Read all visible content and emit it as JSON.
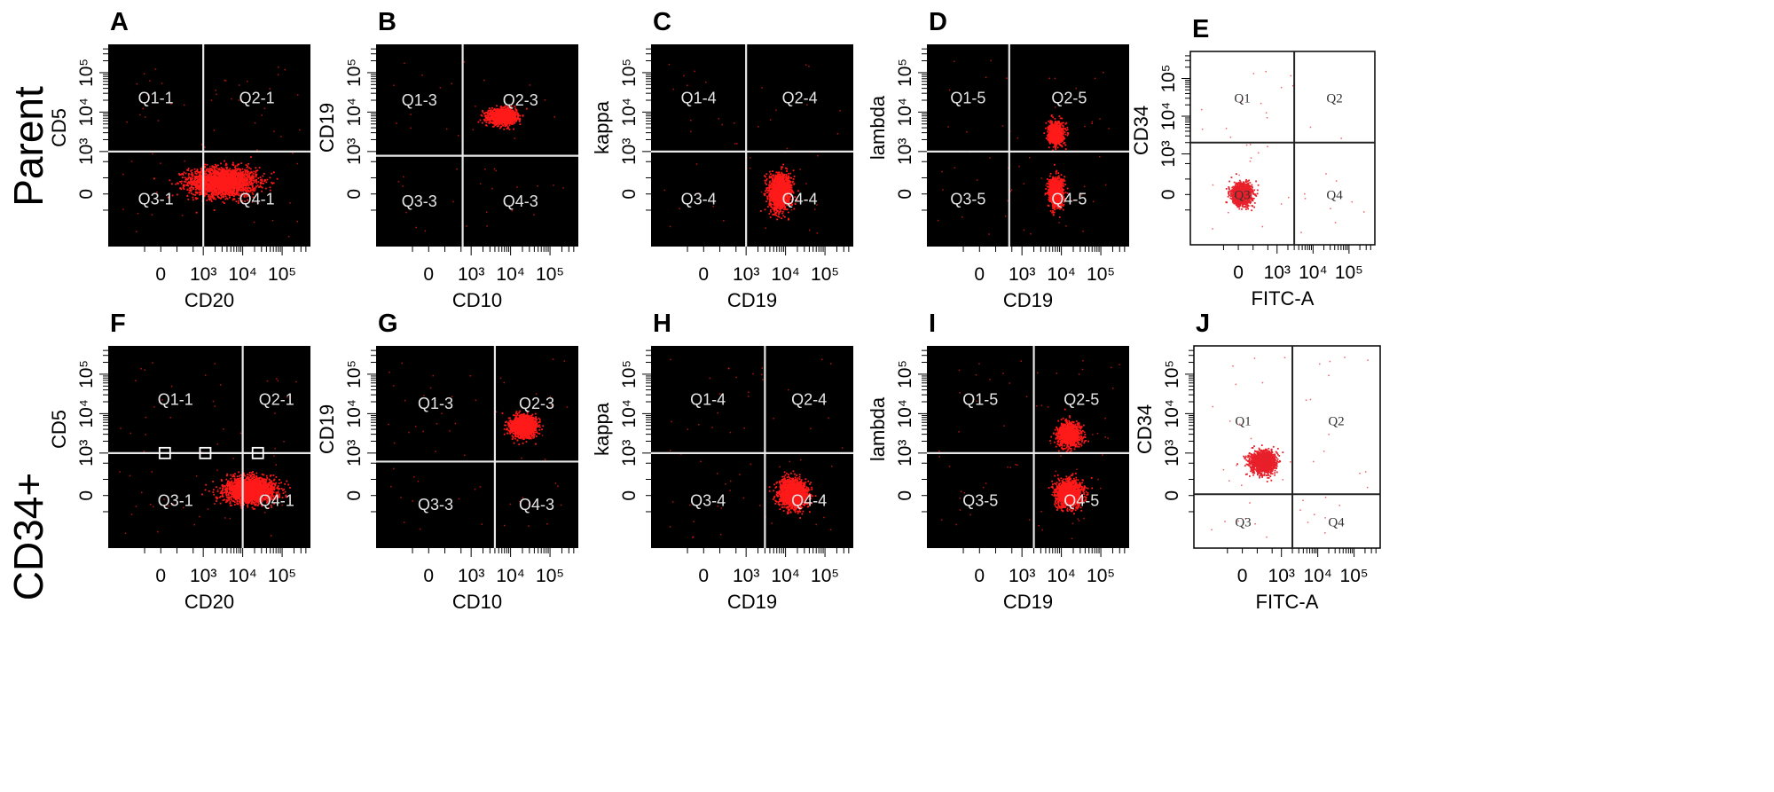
{
  "figure": {
    "row_labels": [
      "Parent",
      "CD34+"
    ]
  },
  "chart_data": [
    {
      "type": "scatter",
      "panel_label": "A",
      "row": "Parent",
      "xlabel": "CD20",
      "ylabel": "CD5",
      "x_ticks": [
        "0",
        "10³",
        "10⁴",
        "10⁵"
      ],
      "y_ticks": [
        "0",
        "10³",
        "10⁴",
        "10⁵"
      ],
      "quadrants": [
        "Q1-1",
        "Q2-1",
        "Q3-1",
        "Q4-1"
      ],
      "gate": {
        "x": 1000,
        "y": 1000
      },
      "populations": [
        {
          "center": [
            3000,
            300
          ],
          "spread": [
            1.4,
            0.6
          ],
          "count": 2200
        }
      ],
      "background": "#000000",
      "point_color": "#ff1a1a"
    },
    {
      "type": "scatter",
      "panel_label": "B",
      "row": "Parent",
      "xlabel": "CD10",
      "ylabel": "CD19",
      "x_ticks": [
        "0",
        "10³",
        "10⁴",
        "10⁵"
      ],
      "y_ticks": [
        "0",
        "10³",
        "10⁴",
        "10⁵"
      ],
      "quadrants": [
        "Q1-3",
        "Q2-3",
        "Q3-3",
        "Q4-3"
      ],
      "gate": {
        "x": 800,
        "y": 900
      },
      "populations": [
        {
          "center": [
            6000,
            8000
          ],
          "spread": [
            0.55,
            0.3
          ],
          "count": 1500
        }
      ],
      "background": "#000000",
      "point_color": "#ff1a1a"
    },
    {
      "type": "scatter",
      "panel_label": "C",
      "row": "Parent",
      "xlabel": "CD19",
      "ylabel": "kappa",
      "x_ticks": [
        "0",
        "10³",
        "10⁴",
        "10⁵"
      ],
      "y_ticks": [
        "0",
        "10³",
        "10⁴",
        "10⁵"
      ],
      "quadrants": [
        "Q1-4",
        "Q2-4",
        "Q3-4",
        "Q4-4"
      ],
      "gate": {
        "x": 1000,
        "y": 1000
      },
      "populations": [
        {
          "center": [
            7000,
            60
          ],
          "spread": [
            0.45,
            0.7
          ],
          "count": 1500
        }
      ],
      "background": "#000000",
      "point_color": "#ff1a1a"
    },
    {
      "type": "scatter",
      "panel_label": "D",
      "row": "Parent",
      "xlabel": "CD19",
      "ylabel": "lambda",
      "x_ticks": [
        "0",
        "10³",
        "10⁴",
        "10⁵"
      ],
      "y_ticks": [
        "0",
        "10³",
        "10⁴",
        "10⁵"
      ],
      "quadrants": [
        "Q1-5",
        "Q2-5",
        "Q3-5",
        "Q4-5"
      ],
      "gate": {
        "x": 700,
        "y": 1000
      },
      "populations": [
        {
          "center": [
            7000,
            60
          ],
          "spread": [
            0.3,
            0.6
          ],
          "count": 1000
        },
        {
          "center": [
            7000,
            3000
          ],
          "spread": [
            0.3,
            0.45
          ],
          "count": 800
        }
      ],
      "background": "#000000",
      "point_color": "#ff1a1a"
    },
    {
      "type": "scatter",
      "panel_label": "E",
      "row": "Parent",
      "xlabel": "FITC-A",
      "ylabel": "CD34",
      "x_ticks": [
        "0",
        "10³",
        "10⁴",
        "10⁵"
      ],
      "y_ticks": [
        "0",
        "10³",
        "10⁴",
        "10⁵"
      ],
      "quadrants": [
        "Q1",
        "Q2",
        "Q3",
        "Q4"
      ],
      "gate": {
        "x": 3000,
        "y": 2000
      },
      "populations": [
        {
          "center": [
            80,
            30
          ],
          "spread": [
            0.45,
            0.45
          ],
          "count": 1300
        }
      ],
      "background": "#ffffff",
      "point_color": "#e8202a"
    },
    {
      "type": "scatter",
      "panel_label": "F",
      "row": "CD34+",
      "xlabel": "CD20",
      "ylabel": "CD5",
      "x_ticks": [
        "0",
        "10³",
        "10⁴",
        "10⁵"
      ],
      "y_ticks": [
        "0",
        "10³",
        "10⁴",
        "10⁵"
      ],
      "quadrants": [
        "Q1-1",
        "Q2-1",
        "Q3-1",
        "Q4-1"
      ],
      "gate": {
        "x": 10000,
        "y": 1000
      },
      "populations": [
        {
          "center": [
            15000,
            150
          ],
          "spread": [
            1.0,
            0.5
          ],
          "count": 2200
        }
      ],
      "background": "#000000",
      "point_color": "#ff1a1a"
    },
    {
      "type": "scatter",
      "panel_label": "G",
      "row": "CD34+",
      "xlabel": "CD10",
      "ylabel": "CD19",
      "x_ticks": [
        "0",
        "10³",
        "10⁴",
        "10⁵"
      ],
      "y_ticks": [
        "0",
        "10³",
        "10⁴",
        "10⁵"
      ],
      "quadrants": [
        "Q1-3",
        "Q2-3",
        "Q3-3",
        "Q4-3"
      ],
      "gate": {
        "x": 4000,
        "y": 800
      },
      "populations": [
        {
          "center": [
            20000,
            5000
          ],
          "spread": [
            0.5,
            0.4
          ],
          "count": 1900
        }
      ],
      "background": "#000000",
      "point_color": "#ff1a1a"
    },
    {
      "type": "scatter",
      "panel_label": "H",
      "row": "CD34+",
      "xlabel": "CD19",
      "ylabel": "kappa",
      "x_ticks": [
        "0",
        "10³",
        "10⁴",
        "10⁵"
      ],
      "y_ticks": [
        "0",
        "10³",
        "10⁴",
        "10⁵"
      ],
      "quadrants": [
        "Q1-4",
        "Q2-4",
        "Q3-4",
        "Q4-4"
      ],
      "gate": {
        "x": 3000,
        "y": 1000
      },
      "populations": [
        {
          "center": [
            15000,
            60
          ],
          "spread": [
            0.55,
            0.55
          ],
          "count": 2000
        }
      ],
      "background": "#000000",
      "point_color": "#ff1a1a"
    },
    {
      "type": "scatter",
      "panel_label": "I",
      "row": "CD34+",
      "xlabel": "CD19",
      "ylabel": "lambda",
      "x_ticks": [
        "0",
        "10³",
        "10⁴",
        "10⁵"
      ],
      "y_ticks": [
        "0",
        "10³",
        "10⁴",
        "10⁵"
      ],
      "quadrants": [
        "Q1-5",
        "Q2-5",
        "Q3-5",
        "Q4-5"
      ],
      "gate": {
        "x": 2000,
        "y": 1000
      },
      "populations": [
        {
          "center": [
            15000,
            60
          ],
          "spread": [
            0.55,
            0.55
          ],
          "count": 1300
        },
        {
          "center": [
            15000,
            3000
          ],
          "spread": [
            0.5,
            0.5
          ],
          "count": 900
        }
      ],
      "background": "#000000",
      "point_color": "#ff1a1a"
    },
    {
      "type": "scatter",
      "panel_label": "J",
      "row": "CD34+",
      "xlabel": "FITC-A",
      "ylabel": "CD34",
      "x_ticks": [
        "0",
        "10³",
        "10⁴",
        "10⁵"
      ],
      "y_ticks": [
        "0",
        "10³",
        "10⁴",
        "10⁵"
      ],
      "quadrants": [
        "Q1",
        "Q2",
        "Q3",
        "Q4"
      ],
      "gate": {
        "x": 2000,
        "y": 30
      },
      "populations": [
        {
          "center": [
            500,
            800
          ],
          "spread": [
            0.55,
            0.45
          ],
          "count": 1500
        }
      ],
      "background": "#ffffff",
      "point_color": "#e8202a"
    }
  ]
}
